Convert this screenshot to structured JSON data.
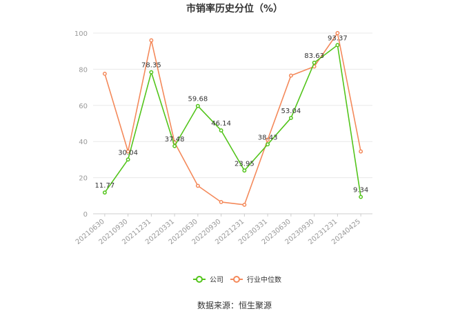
{
  "chart_data": {
    "type": "line",
    "title": "市销率历史分位（%）",
    "source": "数据来源：恒生聚源",
    "xlabel": "",
    "ylabel": "",
    "ylim": [
      0,
      100
    ],
    "yticks": [
      "0",
      "20",
      "40",
      "60",
      "80",
      "100"
    ],
    "grid": true,
    "legend_position": "bottom",
    "categories": [
      "20210630",
      "20210930",
      "20211231",
      "20220331",
      "20220630",
      "20220930",
      "20221231",
      "20230331",
      "20230630",
      "20230930",
      "20231231",
      "20240425"
    ],
    "series": [
      {
        "name": "公司",
        "color": "#52c41a",
        "values": [
          11.77,
          30.04,
          78.35,
          37.48,
          59.68,
          46.14,
          23.95,
          38.43,
          53.04,
          83.63,
          93.37,
          9.34
        ],
        "labels": [
          "11.77",
          "30.04",
          "78.35",
          "37.48",
          "59.68",
          "46.14",
          "23.95",
          "38.43",
          "53.04",
          "83.63",
          "93.37",
          "9.34"
        ]
      },
      {
        "name": "行业中位数",
        "color": "#f4895a",
        "values": [
          77.5,
          34.5,
          96.0,
          39.5,
          15.5,
          6.5,
          5.0,
          41.0,
          76.5,
          81.5,
          100.0,
          34.5
        ]
      }
    ]
  }
}
